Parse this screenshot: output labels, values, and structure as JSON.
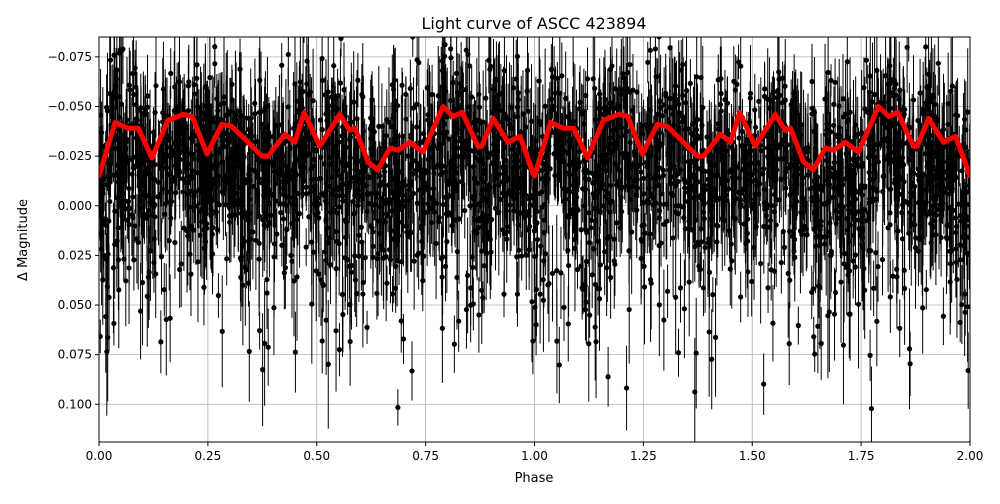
{
  "chart_data": {
    "type": "scatter",
    "title": "Light curve of ASCC 423894",
    "xlabel": "Phase",
    "ylabel": "Δ Magnitude",
    "xlim": [
      0,
      2
    ],
    "ylim": [
      0.119,
      -0.085
    ],
    "y_inverted": true,
    "grid": true,
    "xticks": [
      "0.00",
      "0.25",
      "0.50",
      "0.75",
      "1.00",
      "1.25",
      "1.50",
      "1.75",
      "2.00"
    ],
    "xtick_values": [
      0,
      0.25,
      0.5,
      0.75,
      1.0,
      1.25,
      1.5,
      1.75,
      2.0
    ],
    "yticks": [
      "−0.075",
      "−0.050",
      "−0.025",
      "0.000",
      "0.025",
      "0.050",
      "0.075",
      "0.100"
    ],
    "ytick_values": [
      -0.075,
      -0.05,
      -0.025,
      0,
      0.025,
      0.05,
      0.075,
      0.1
    ],
    "colors": {
      "points": "#000000",
      "model": "#ff0000",
      "grid": "#b0b0b0"
    },
    "series": [
      {
        "kind": "points-with-errorbars",
        "color": "#000000",
        "description_visible": "dense photometric points with vertical error bars, spread from about -0.085 to 0.119"
      },
      {
        "kind": "smoothed-line",
        "color": "#ff0000",
        "x": [
          0,
          0.037,
          0.067,
          0.09,
          0.122,
          0.158,
          0.193,
          0.214,
          0.248,
          0.282,
          0.305,
          0.342,
          0.374,
          0.388,
          0.427,
          0.45,
          0.471,
          0.507,
          0.553,
          0.576,
          0.588,
          0.618,
          0.64,
          0.668,
          0.687,
          0.714,
          0.744,
          0.79,
          0.813,
          0.834,
          0.87,
          0.879,
          0.905,
          0.939,
          0.967,
          0.997,
          1.0,
          1.037,
          1.067,
          1.09,
          1.122,
          1.158,
          1.193,
          1.214,
          1.248,
          1.282,
          1.305,
          1.342,
          1.374,
          1.388,
          1.427,
          1.45,
          1.471,
          1.507,
          1.553,
          1.576,
          1.588,
          1.618,
          1.64,
          1.668,
          1.687,
          1.714,
          1.744,
          1.79,
          1.813,
          1.834,
          1.87,
          1.879,
          1.905,
          1.939,
          1.967,
          2.0
        ],
        "y": [
          -0.015,
          -0.042,
          -0.039,
          -0.039,
          -0.024,
          -0.043,
          -0.046,
          -0.045,
          -0.026,
          -0.041,
          -0.04,
          -0.032,
          -0.025,
          -0.025,
          -0.036,
          -0.032,
          -0.047,
          -0.03,
          -0.046,
          -0.038,
          -0.039,
          -0.022,
          -0.018,
          -0.029,
          -0.028,
          -0.032,
          -0.027,
          -0.05,
          -0.045,
          -0.047,
          -0.03,
          -0.03,
          -0.044,
          -0.032,
          -0.035,
          -0.016,
          -0.015,
          -0.042,
          -0.039,
          -0.039,
          -0.024,
          -0.043,
          -0.046,
          -0.045,
          -0.026,
          -0.041,
          -0.04,
          -0.032,
          -0.025,
          -0.025,
          -0.036,
          -0.032,
          -0.047,
          -0.03,
          -0.046,
          -0.038,
          -0.039,
          -0.022,
          -0.018,
          -0.029,
          -0.028,
          -0.032,
          -0.027,
          -0.05,
          -0.045,
          -0.047,
          -0.03,
          -0.03,
          -0.044,
          -0.032,
          -0.035,
          -0.015
        ]
      }
    ]
  }
}
